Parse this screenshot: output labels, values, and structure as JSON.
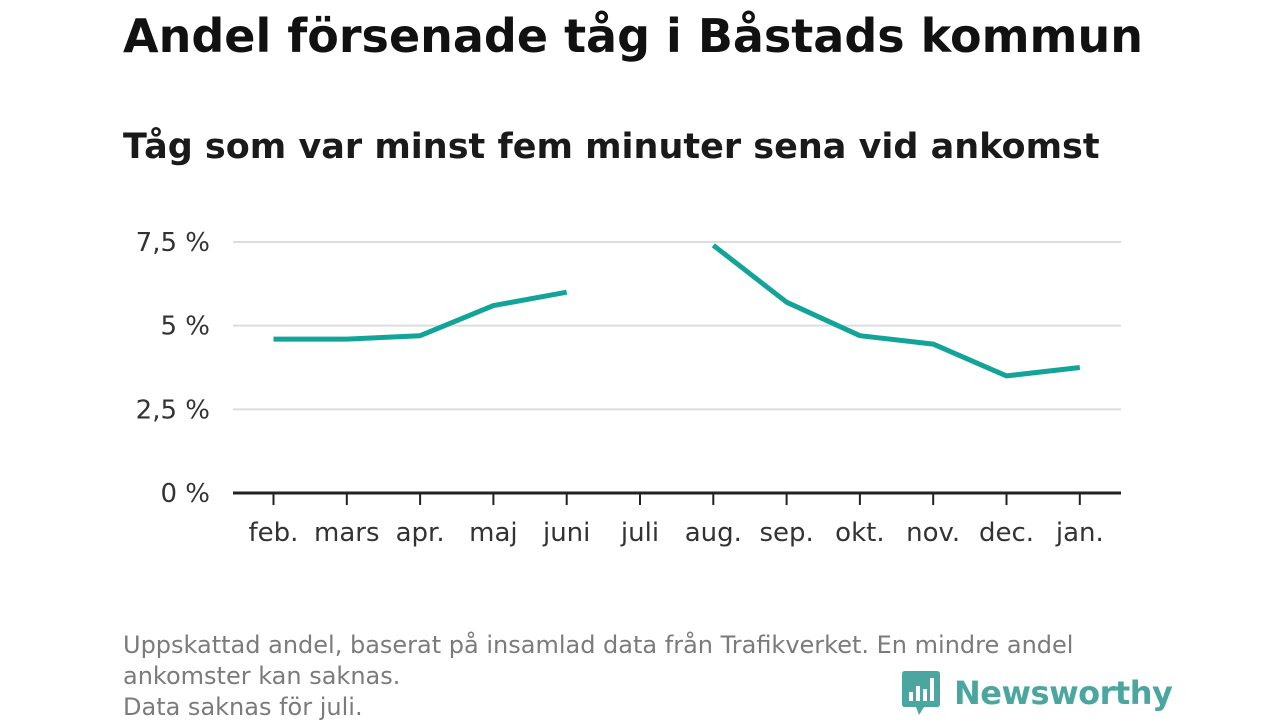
{
  "title": "Andel försenade tåg i Båstads kommun",
  "subtitle": "Tåg som var minst fem minuter sena vid ankomst",
  "footnote": {
    "line1": "Uppskattad andel, baserat på insamlad data från Trafikverket. En mindre andel",
    "line2": "ankomster kan saknas.",
    "line3": "Data saknas för juli."
  },
  "logo": {
    "text": "Newsworthy",
    "icon": "bar-chart-speech-bubble-icon",
    "color": "#4aa69f"
  },
  "chart_data": {
    "type": "line",
    "categories": [
      "feb.",
      "mars",
      "apr.",
      "maj",
      "juni",
      "juli",
      "aug.",
      "sep.",
      "okt.",
      "nov.",
      "dec.",
      "jan."
    ],
    "series": [
      {
        "values": [
          4.6,
          4.6,
          4.7,
          5.6,
          6.0,
          null,
          7.4,
          5.7,
          4.7,
          4.45,
          3.5,
          3.75
        ]
      }
    ],
    "ylim": [
      0,
      7.5
    ],
    "yticks": [
      0,
      2.5,
      5,
      7.5
    ],
    "ytick_labels": [
      "0 %",
      "2,5 %",
      "5 %",
      "7,5 %"
    ],
    "grid": true,
    "colors": {
      "line": "#13a499",
      "grid": "#dddddd",
      "axis": "#222222"
    }
  }
}
